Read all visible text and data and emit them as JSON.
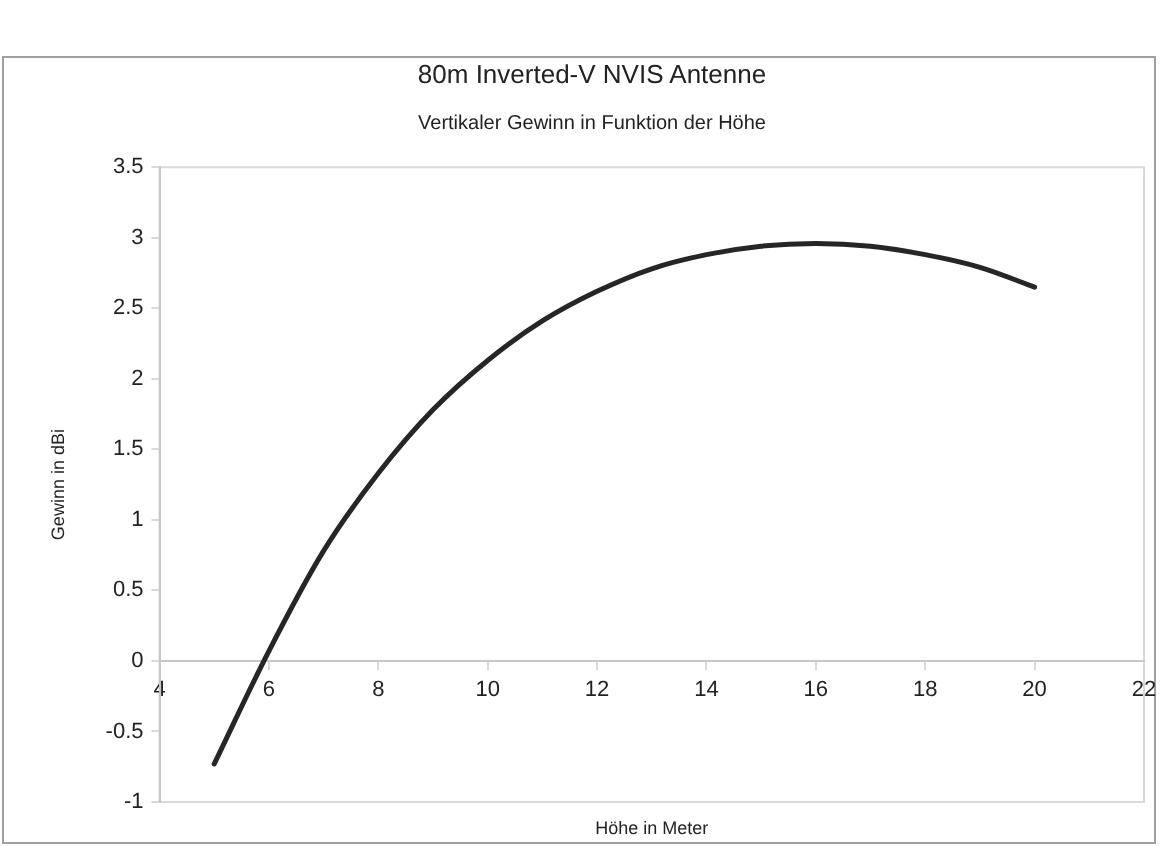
{
  "chart_data": {
    "type": "line",
    "title": "80m Inverted-V NVIS Antenne",
    "subtitle": "Vertikaler Gewinn in Funktion der Höhe",
    "xlabel": "Höhe in Meter",
    "ylabel": "Gewinn in dBi",
    "x": [
      5,
      6,
      7,
      8,
      9,
      10,
      11,
      12,
      13,
      14,
      15,
      16,
      17,
      18,
      19,
      20
    ],
    "series": [
      {
        "color": "#262626",
        "values": [
          -0.73,
          0.07,
          0.78,
          1.33,
          1.78,
          2.13,
          2.41,
          2.62,
          2.78,
          2.88,
          2.94,
          2.96,
          2.94,
          2.88,
          2.79,
          2.65
        ]
      }
    ],
    "xlim": [
      4,
      22
    ],
    "xticks": [
      4,
      6,
      8,
      10,
      12,
      14,
      16,
      18,
      20,
      22
    ],
    "ylim": [
      -1,
      3.5
    ],
    "yticks": [
      -1,
      -0.5,
      0,
      0.5,
      1,
      1.5,
      2,
      2.5,
      3,
      3.5
    ],
    "grid": false,
    "legend": false,
    "marker": "none",
    "line_style": "solid"
  }
}
